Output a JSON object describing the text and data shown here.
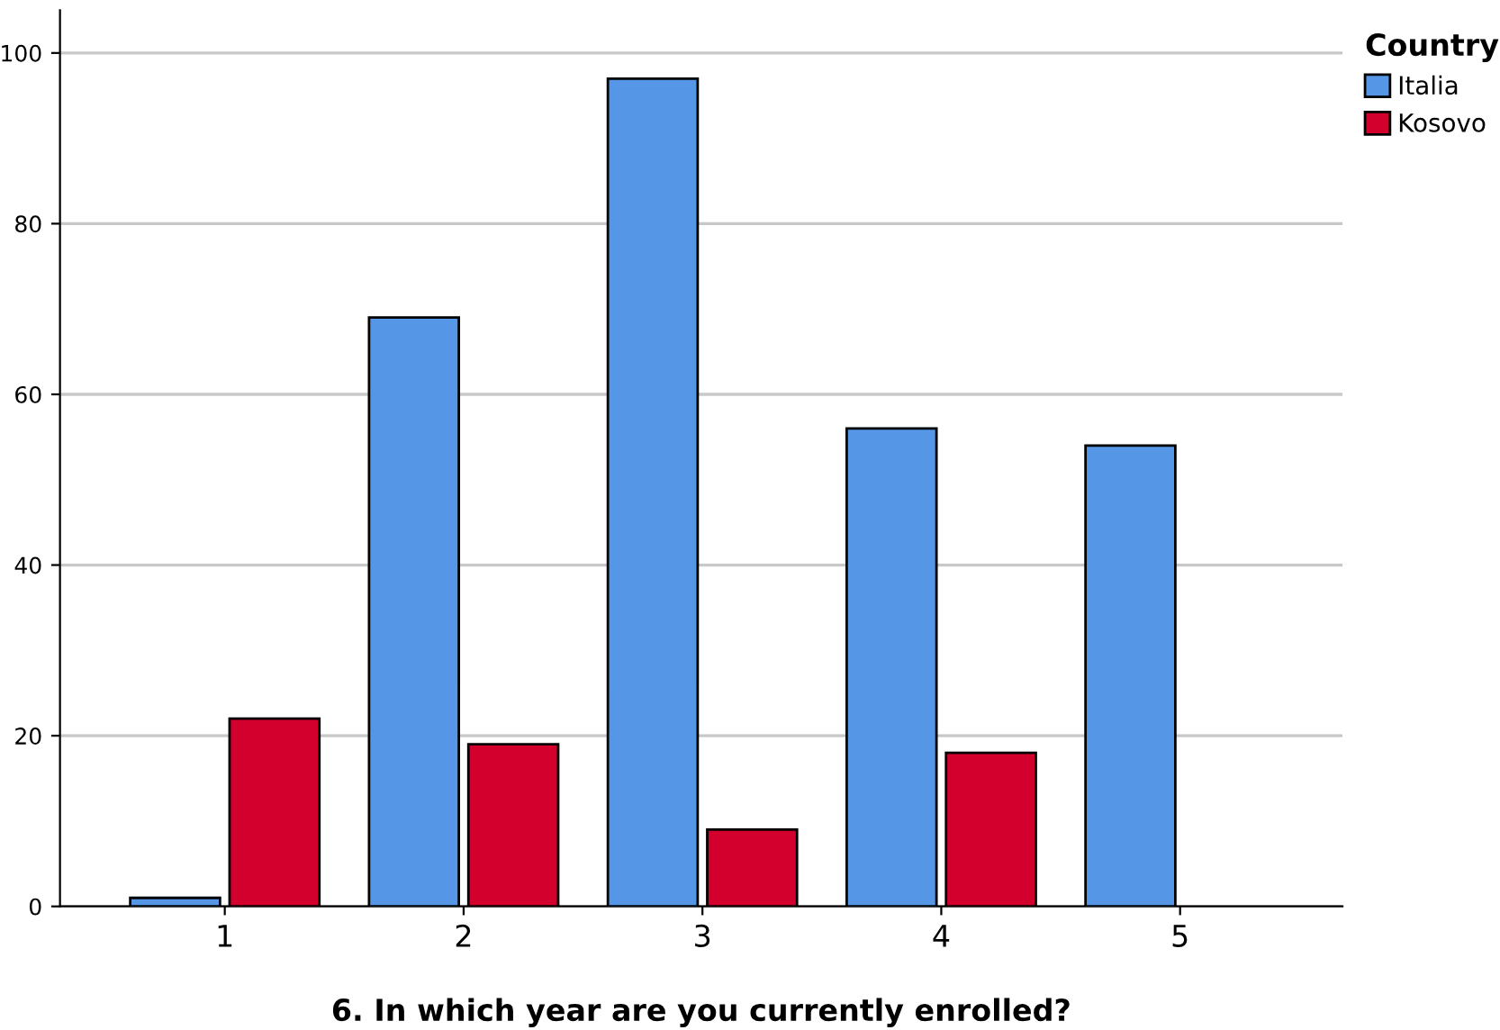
{
  "chart_data": {
    "type": "bar",
    "xlabel": "6. In which year are you currently enrolled?",
    "legend_title": "Country",
    "categories": [
      "1",
      "2",
      "3",
      "4",
      "5"
    ],
    "series": [
      {
        "name": "Italia",
        "color": "#5596e6",
        "values": [
          1,
          69,
          97,
          56,
          54
        ]
      },
      {
        "name": "Kosovo",
        "color": "#d3002d",
        "values": [
          22,
          19,
          9,
          18,
          null
        ]
      }
    ],
    "ylim": [
      0,
      105
    ],
    "yticks": [
      0,
      20,
      40,
      60,
      80,
      100
    ],
    "grid": "y",
    "legend": "top right"
  }
}
